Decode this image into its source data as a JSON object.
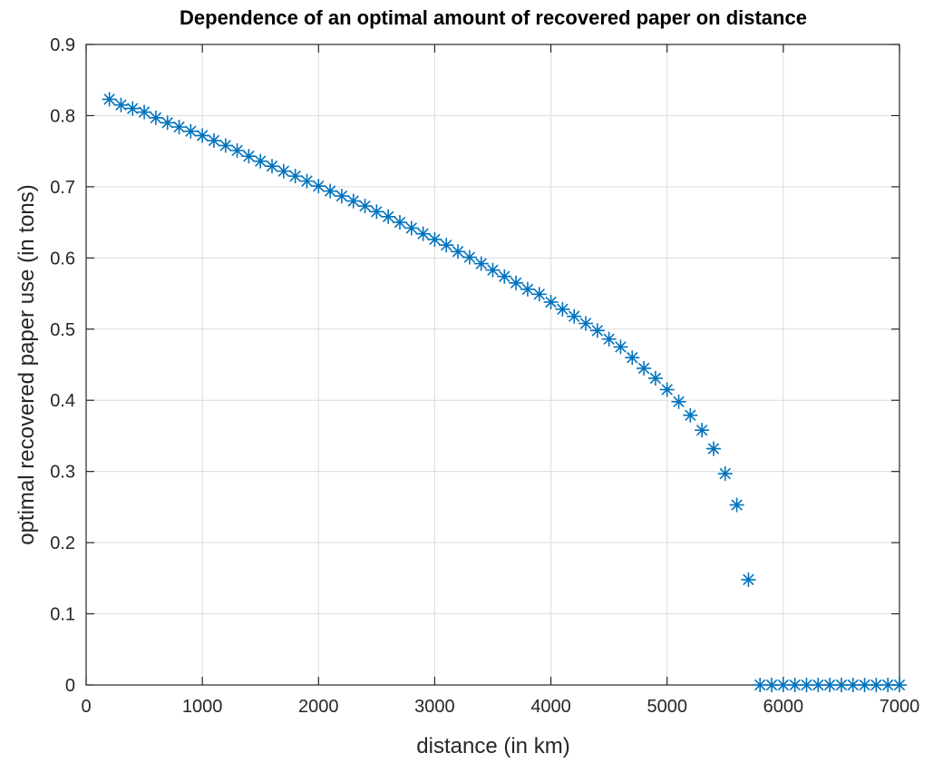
{
  "chart_data": {
    "type": "scatter",
    "title": "Dependence of an optimal amount of recovered paper on distance",
    "xlabel": "distance (in km)",
    "ylabel": "optimal recovered paper use (in tons)",
    "xlim": [
      0,
      7000
    ],
    "ylim": [
      0,
      0.9
    ],
    "xticks": [
      "0",
      "1000",
      "2000",
      "3000",
      "4000",
      "5000",
      "6000",
      "7000"
    ],
    "yticks": [
      "0",
      "0.1",
      "0.2",
      "0.3",
      "0.4",
      "0.5",
      "0.6",
      "0.7",
      "0.8",
      "0.9"
    ],
    "grid": true,
    "marker": "asterisk",
    "color": "#0072BD",
    "series": [
      {
        "x": [
          200,
          300,
          400,
          500,
          600,
          700,
          800,
          900,
          1000,
          1100,
          1200,
          1300,
          1400,
          1500,
          1600,
          1700,
          1800,
          1900,
          2000,
          2100,
          2200,
          2300,
          2400,
          2500,
          2600,
          2700,
          2800,
          2900,
          3000,
          3100,
          3200,
          3300,
          3400,
          3500,
          3600,
          3700,
          3800,
          3900,
          4000,
          4100,
          4200,
          4300,
          4400,
          4500,
          4600,
          4700,
          4800,
          4900,
          5000,
          5100,
          5200,
          5300,
          5400,
          5500,
          5600,
          5700,
          5800,
          5900,
          6000,
          6100,
          6200,
          6300,
          6400,
          6500,
          6600,
          6700,
          6800,
          6900,
          7000
        ],
        "y": [
          0.823,
          0.815,
          0.81,
          0.805,
          0.797,
          0.79,
          0.784,
          0.778,
          0.772,
          0.765,
          0.758,
          0.751,
          0.743,
          0.736,
          0.729,
          0.722,
          0.715,
          0.708,
          0.701,
          0.694,
          0.687,
          0.68,
          0.673,
          0.665,
          0.658,
          0.65,
          0.642,
          0.634,
          0.626,
          0.618,
          0.609,
          0.601,
          0.592,
          0.583,
          0.574,
          0.565,
          0.556,
          0.549,
          0.538,
          0.528,
          0.518,
          0.508,
          0.498,
          0.486,
          0.475,
          0.46,
          0.445,
          0.431,
          0.415,
          0.398,
          0.379,
          0.358,
          0.332,
          0.297,
          0.253,
          0.148,
          0,
          0,
          0,
          0,
          0,
          0,
          0,
          0,
          0,
          0,
          0,
          0,
          0
        ]
      }
    ]
  }
}
